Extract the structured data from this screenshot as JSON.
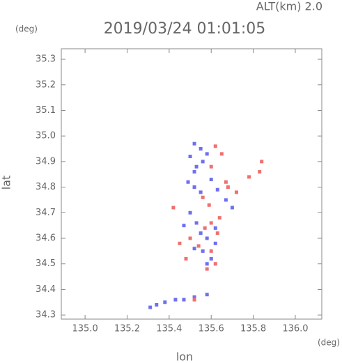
{
  "chart_data": {
    "type": "scatter",
    "title": "2019/03/24 01:01:05",
    "subtitle": "ALT(km) 2.0",
    "y_unit": "(deg)",
    "x_unit": "(deg)",
    "x_label": "lon",
    "y_label": "lat",
    "xlim": [
      134.887,
      136.126
    ],
    "ylim": [
      34.284,
      35.341
    ],
    "xticks": [
      {
        "value": 135,
        "label": "135.0"
      },
      {
        "value": 135.2,
        "label": "135.2"
      },
      {
        "value": 135.4,
        "label": "135.4"
      },
      {
        "value": 135.6,
        "label": "135.6"
      },
      {
        "value": 135.8,
        "label": "135.8"
      },
      {
        "value": 136,
        "label": "136.0"
      }
    ],
    "yticks": [
      34.3,
      34.4,
      34.5,
      34.6,
      34.7,
      34.8,
      34.9,
      {
        "value": 35,
        "label": "35.0"
      },
      35.1,
      35.2,
      35.3
    ],
    "series": [
      {
        "color": "#6f6ff0",
        "x": [
          135.52,
          135.55,
          135.58,
          135.5,
          135.53,
          135.56,
          135.49,
          135.52,
          135.55,
          135.6,
          135.63,
          135.67,
          135.5,
          135.53,
          135.47,
          135.55,
          135.58,
          135.62,
          135.52,
          135.56,
          135.6,
          135.58,
          135.62,
          135.34,
          135.38,
          135.43,
          135.47,
          135.52,
          135.58,
          135.31,
          135.52,
          135.7
        ],
        "values": [
          34.97,
          34.95,
          34.93,
          34.92,
          34.88,
          34.9,
          34.82,
          34.8,
          34.78,
          34.83,
          34.79,
          34.75,
          34.7,
          34.66,
          34.65,
          34.62,
          34.6,
          34.64,
          34.56,
          34.55,
          34.52,
          34.5,
          34.58,
          34.34,
          34.35,
          34.36,
          34.36,
          34.37,
          34.38,
          34.33,
          34.86,
          34.72
        ]
      },
      {
        "color": "#f07070",
        "x": [
          135.62,
          135.65,
          135.6,
          135.67,
          135.72,
          135.78,
          135.84,
          135.6,
          135.64,
          135.57,
          135.63,
          135.5,
          135.54,
          135.6,
          135.62,
          135.45,
          135.42,
          135.56,
          135.59,
          135.68,
          135.48,
          135.58,
          135.52,
          135.83
        ],
        "values": [
          34.96,
          34.93,
          34.88,
          34.82,
          34.78,
          34.84,
          34.9,
          34.66,
          34.68,
          34.64,
          34.62,
          34.6,
          34.57,
          34.55,
          34.5,
          34.58,
          34.72,
          34.76,
          34.73,
          34.8,
          34.52,
          34.48,
          34.36,
          34.86
        ]
      }
    ]
  }
}
